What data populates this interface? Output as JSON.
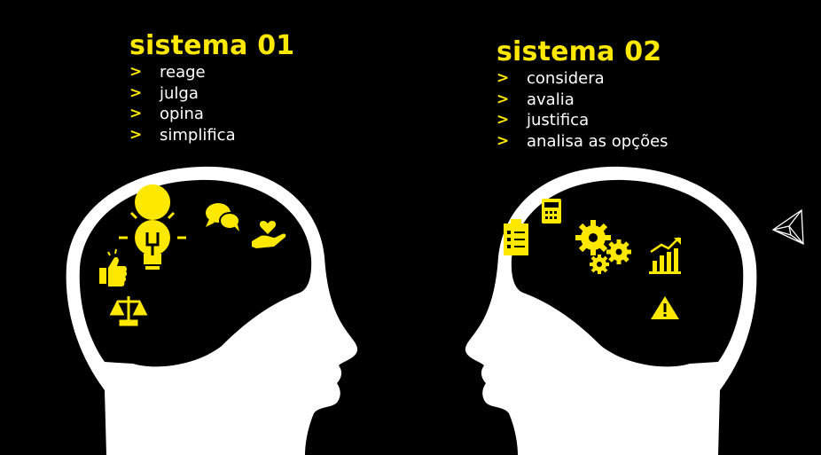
{
  "colors": {
    "background": "#000000",
    "accent": "#ffe800",
    "head": "#ffffff"
  },
  "bullet_glyph": ">",
  "system1": {
    "title": "sistema 01",
    "items": [
      "reage",
      "julga",
      "opina",
      "simplifica"
    ],
    "icons": [
      "lightbulb-icon",
      "chat-bubbles-icon",
      "heart-hand-icon",
      "thumbs-up-icon",
      "scales-icon"
    ]
  },
  "system2": {
    "title": "sistema 02",
    "items": [
      "considera",
      "avalia",
      "justifica",
      "analisa as opções"
    ],
    "icons": [
      "calculator-icon",
      "clipboard-checklist-icon",
      "gears-icon",
      "bar-chart-growth-icon",
      "warning-icon"
    ]
  }
}
